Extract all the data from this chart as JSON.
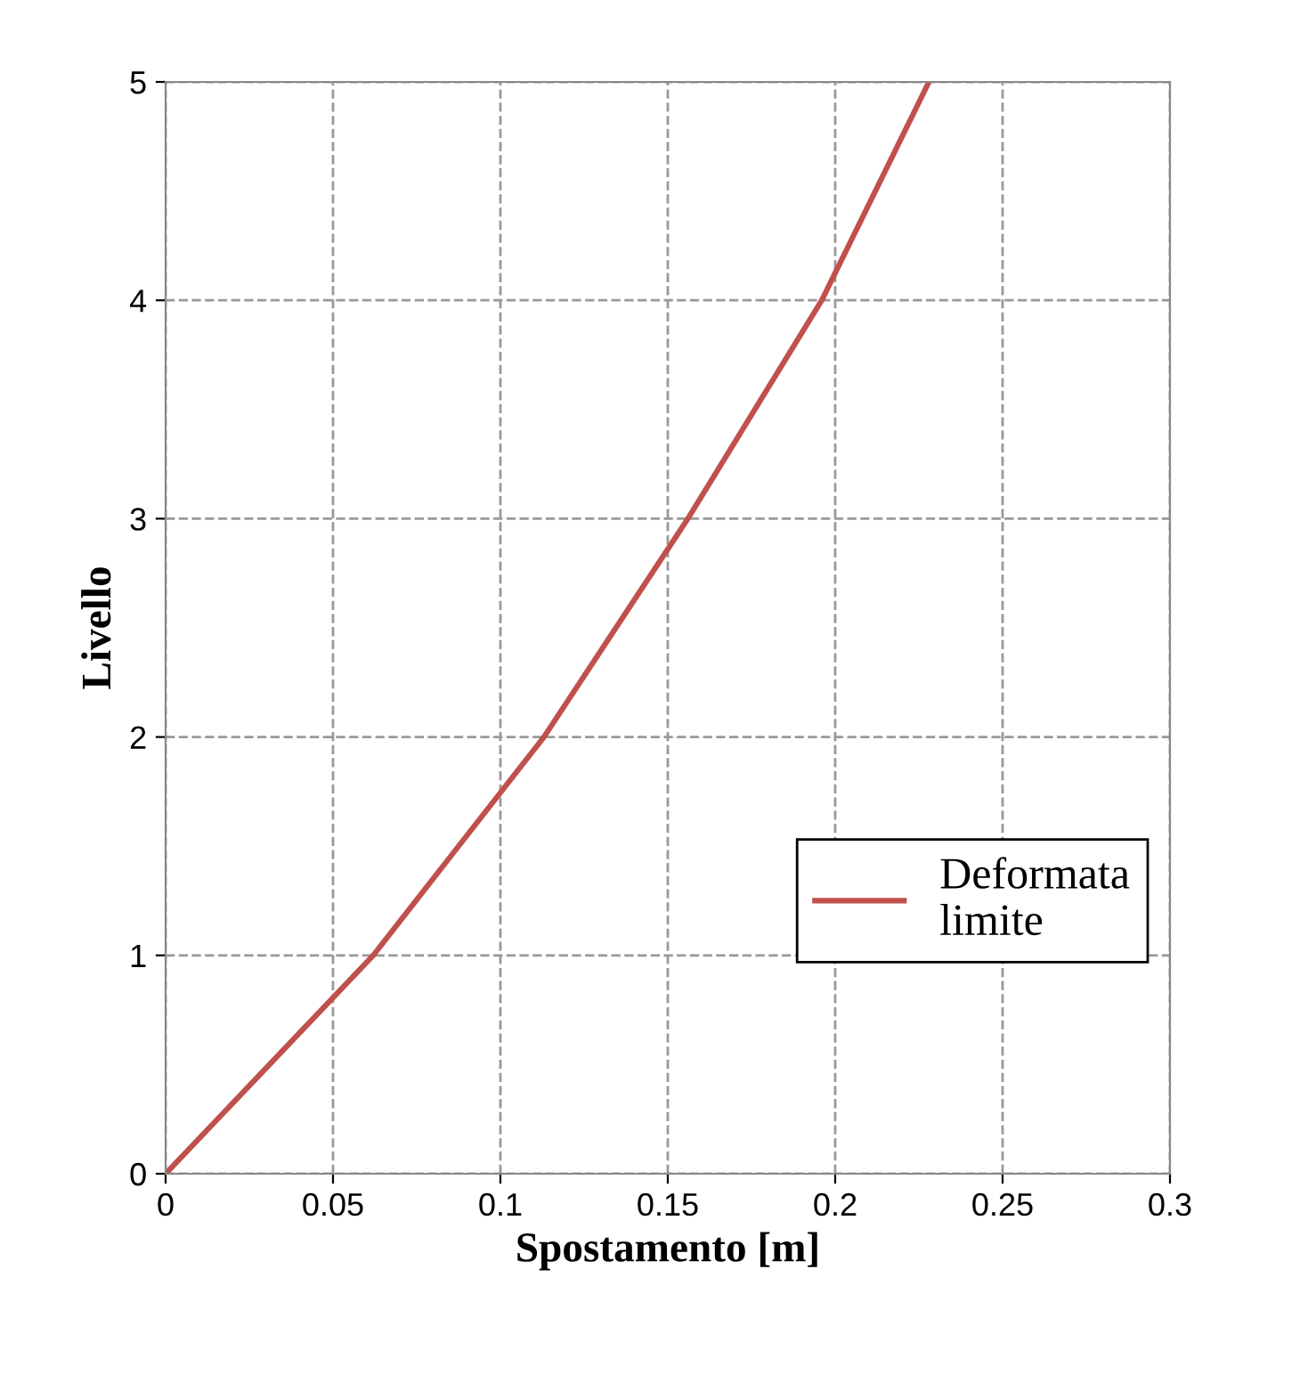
{
  "chart_data": {
    "type": "line",
    "xlabel": "Spostamento [m]",
    "ylabel": "Livello",
    "x": [
      0,
      0.062,
      0.113,
      0.156,
      0.196,
      0.228
    ],
    "series": [
      {
        "name": "Deformata\nlimite",
        "color": "#c0504d",
        "values": [
          0,
          1,
          2,
          3,
          4,
          5
        ]
      }
    ],
    "xlim": [
      0,
      0.3
    ],
    "xticks": [
      0,
      0.05,
      0.1,
      0.15,
      0.2,
      0.25,
      0.3
    ],
    "ylim": [
      0,
      5
    ],
    "yticks": [
      0,
      1,
      2,
      3,
      4,
      5
    ],
    "grid": true,
    "legend": "right",
    "marker": "none",
    "line_style": "solid"
  }
}
